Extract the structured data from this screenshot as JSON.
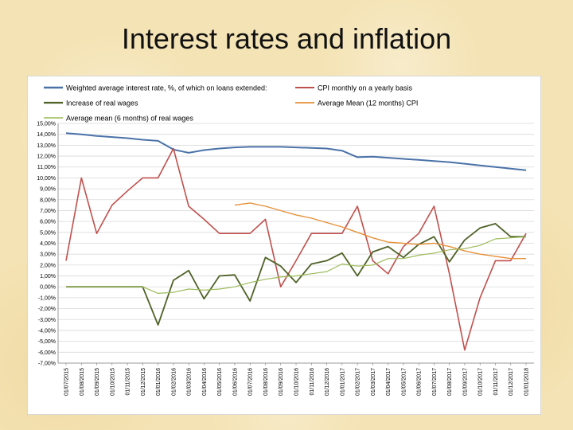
{
  "slide": {
    "title": "Interest rates and inflation"
  },
  "chart_data": {
    "type": "line",
    "ylim": [
      -7,
      15
    ],
    "y_ticks": [
      "15,00%",
      "14,00%",
      "13,00%",
      "12,00%",
      "11,00%",
      "10,00%",
      "9,00%",
      "8,00%",
      "7,00%",
      "6,00%",
      "5,00%",
      "4,00%",
      "3,00%",
      "2,00%",
      "1,00%",
      "0,00%",
      "-1,00%",
      "-2,00%",
      "-3,00%",
      "-4,00%",
      "-5,00%",
      "-6,00%",
      "-7,00%"
    ],
    "categories": [
      "01/07/2015",
      "01/08/2015",
      "01/09/2015",
      "01/10/2015",
      "01/11/2015",
      "01/12/2015",
      "01/01/2016",
      "01/02/2016",
      "01/03/2016",
      "01/04/2016",
      "01/05/2016",
      "01/06/2016",
      "01/07/2016",
      "01/08/2016",
      "01/09/2016",
      "01/10/2016",
      "01/11/2016",
      "01/12/2016",
      "01/01/2017",
      "01/02/2017",
      "01/03/2017",
      "01/04/2017",
      "01/05/2017",
      "01/06/2017",
      "01/07/2017",
      "01/08/2017",
      "01/09/2017",
      "01/10/2017",
      "01/11/2017",
      "01/12/2017",
      "01/01/2018"
    ],
    "grid": true,
    "legend_position": "top",
    "series": [
      {
        "name": "Weighted average interest rate, %, of which on loans extended:",
        "color": "#4a72a8",
        "width": 2,
        "values": [
          14.1,
          14.0,
          13.85,
          13.75,
          13.65,
          13.5,
          13.4,
          12.6,
          12.3,
          12.55,
          12.7,
          12.8,
          12.85,
          12.85,
          12.85,
          12.8,
          12.75,
          12.7,
          12.5,
          11.9,
          11.95,
          11.85,
          11.75,
          11.65,
          11.55,
          11.45,
          11.3,
          11.15,
          11.0,
          10.85,
          10.7
        ]
      },
      {
        "name": "CPI monthly on a yearly basis",
        "color": "#c0504d",
        "width": 1.6,
        "values": [
          2.4,
          10.0,
          4.9,
          7.5,
          8.8,
          10.0,
          10.0,
          12.7,
          7.4,
          6.2,
          4.9,
          4.9,
          4.9,
          6.2,
          0.0,
          2.4,
          4.9,
          4.9,
          4.9,
          7.4,
          2.4,
          1.2,
          3.7,
          4.9,
          7.4,
          1.2,
          -5.8,
          -1.0,
          2.4,
          2.4,
          4.9
        ]
      },
      {
        "name": "Increase of real wages",
        "color": "#4f6228",
        "width": 1.8,
        "values": [
          0.0,
          0.0,
          0.0,
          0.0,
          0.0,
          0.0,
          -3.5,
          0.6,
          1.5,
          -1.1,
          1.0,
          1.1,
          -1.3,
          2.7,
          1.9,
          0.4,
          2.1,
          2.4,
          3.1,
          1.0,
          3.2,
          3.7,
          2.7,
          3.9,
          4.6,
          2.3,
          4.3,
          5.4,
          5.8,
          4.6,
          4.6
        ]
      },
      {
        "name": "Average Mean (12 months) CPI",
        "color": "#e69138",
        "width": 1.4,
        "values": [
          null,
          null,
          null,
          null,
          null,
          null,
          null,
          null,
          null,
          null,
          null,
          7.5,
          7.7,
          7.4,
          7.0,
          6.6,
          6.3,
          5.9,
          5.5,
          5.0,
          4.5,
          4.1,
          4.0,
          3.9,
          4.0,
          3.7,
          3.3,
          3.0,
          2.8,
          2.6,
          2.6
        ]
      },
      {
        "name": "Average mean (6 months) of real wages",
        "color": "#9bbb59",
        "width": 1.2,
        "values": [
          0.0,
          0.0,
          0.0,
          0.0,
          0.0,
          0.0,
          -0.6,
          -0.5,
          -0.2,
          -0.3,
          -0.2,
          0.0,
          0.4,
          0.7,
          0.9,
          1.0,
          1.2,
          1.4,
          2.1,
          1.9,
          2.0,
          2.6,
          2.6,
          2.9,
          3.1,
          3.4,
          3.5,
          3.8,
          4.4,
          4.5,
          4.6
        ]
      }
    ]
  }
}
